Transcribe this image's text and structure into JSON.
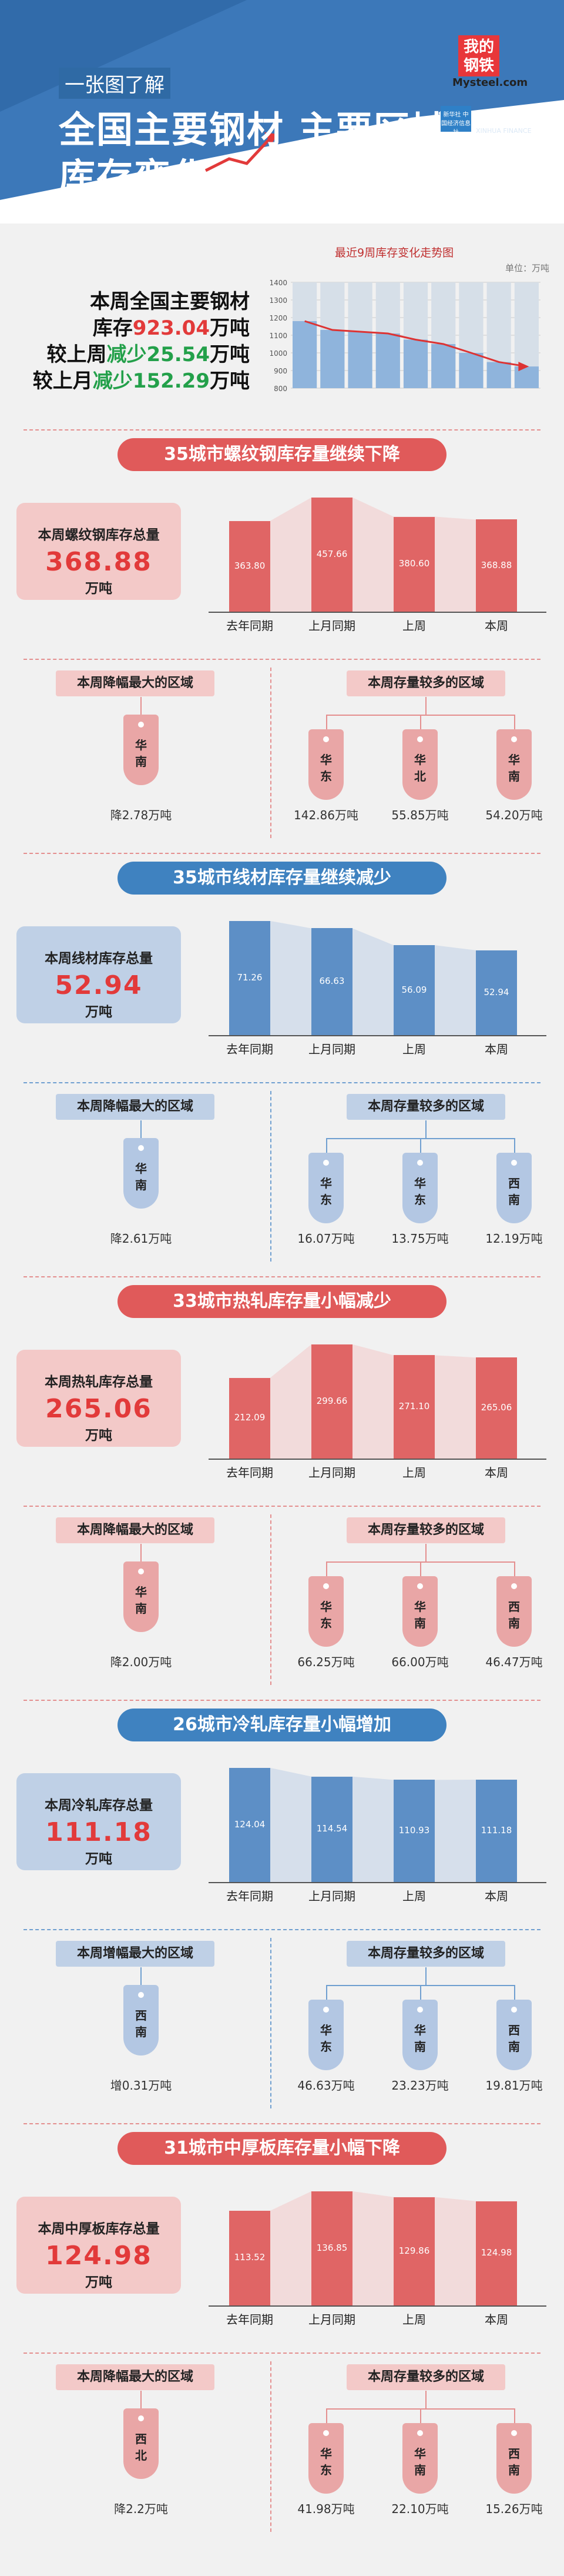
{
  "header": {
    "tag": "一张图了解",
    "title1": "全国主要钢材 主要区域",
    "title2": "库存变化",
    "brand_a": "我的",
    "brand_a2": "钢铁",
    "brand_a3": "Mysteel.com",
    "brand_b_box": "新华社 中国经济信息社",
    "brand_b": "新华财经",
    "brand_b2": "XINHUA FINANCE"
  },
  "summary": {
    "l1": "本周全国主要钢材",
    "l2a": "库存",
    "l2v": "923.04",
    "l2b": "万吨",
    "l3a": "较上周",
    "l3c": "减少",
    "l3v": "25.54",
    "l3b": "万吨",
    "l4a": "较上月",
    "l4c": "减少",
    "l4v": "152.29",
    "l4b": "万吨"
  },
  "mini_chart": {
    "title": "最近9周库存变化走势图",
    "unit": "单位：万吨",
    "yticks": [
      "1400",
      "1300",
      "1200",
      "1100",
      "1000",
      "900",
      "800"
    ],
    "ymin": 800,
    "ymax": 1400,
    "values": [
      1180,
      1130,
      1120,
      1110,
      1075,
      1050,
      1000,
      948,
      923
    ]
  },
  "colors": {
    "red": "#e23a3a",
    "red_light": "#f3c9c8",
    "blue_light": "#bfd0e6",
    "pill_red": "#e05a5a",
    "pill_blue": "#3f82c0",
    "bar_red": "#e06565",
    "bar_blue": "#5d8fc6"
  },
  "sections": [
    {
      "title": "35城市螺纹钢库存量继续下降",
      "box_label": "本周螺纹钢库存总量",
      "box_value": "368.88",
      "box_unit": "万吨",
      "categories": [
        "去年同期",
        "上月同期",
        "上周",
        "本周"
      ],
      "values": [
        363.8,
        457.66,
        380.6,
        368.88
      ],
      "value_labels": [
        "363.80",
        "457.66",
        "380.60",
        "368.88"
      ],
      "left_title": "本周降幅最大的区域",
      "left_region": "华\n南",
      "left_value": "降2.78万吨",
      "right_title": "本周存量较多的区域",
      "right_regions": [
        "华\n东",
        "华\n北",
        "华\n南"
      ],
      "right_values": [
        "142.86万吨",
        "55.85万吨",
        "54.20万吨"
      ]
    },
    {
      "title": "35城市线材库存量继续减少",
      "box_label": "本周线材库存总量",
      "box_value": "52.94",
      "box_unit": "万吨",
      "categories": [
        "去年同期",
        "上月同期",
        "上周",
        "本周"
      ],
      "values": [
        71.26,
        66.63,
        56.09,
        52.94
      ],
      "value_labels": [
        "71.26",
        "66.63",
        "56.09",
        "52.94"
      ],
      "left_title": "本周降幅最大的区域",
      "left_region": "华\n南",
      "left_value": "降2.61万吨",
      "right_title": "本周存量较多的区域",
      "right_regions": [
        "华\n东",
        "华\n东",
        "西\n南"
      ],
      "right_values": [
        "16.07万吨",
        "13.75万吨",
        "12.19万吨"
      ]
    },
    {
      "title": "33城市热轧库存量小幅减少",
      "box_label": "本周热轧库存总量",
      "box_value": "265.06",
      "box_unit": "万吨",
      "categories": [
        "去年同期",
        "上月同期",
        "上周",
        "本周"
      ],
      "values": [
        212.09,
        299.66,
        271.1,
        265.06
      ],
      "value_labels": [
        "212.09",
        "299.66",
        "271.10",
        "265.06"
      ],
      "left_title": "本周降幅最大的区域",
      "left_region": "华\n南",
      "left_value": "降2.00万吨",
      "right_title": "本周存量较多的区域",
      "right_regions": [
        "华\n东",
        "华\n南",
        "西\n南"
      ],
      "right_values": [
        "66.25万吨",
        "66.00万吨",
        "46.47万吨"
      ]
    },
    {
      "title": "26城市冷轧库存量小幅增加",
      "box_label": "本周冷轧库存总量",
      "box_value": "111.18",
      "box_unit": "万吨",
      "categories": [
        "去年同期",
        "上月同期",
        "上周",
        "本周"
      ],
      "values": [
        124.04,
        114.54,
        110.93,
        111.18
      ],
      "value_labels": [
        "124.04",
        "114.54",
        "110.93",
        "111.18"
      ],
      "left_title": "本周增幅最大的区域",
      "left_region": "西\n南",
      "left_value": "增0.31万吨",
      "right_title": "本周存量较多的区域",
      "right_regions": [
        "华\n东",
        "华\n南",
        "西\n南"
      ],
      "right_values": [
        "46.63万吨",
        "23.23万吨",
        "19.81万吨"
      ]
    },
    {
      "title": "31城市中厚板库存量小幅下降",
      "box_label": "本周中厚板库存总量",
      "box_value": "124.98",
      "box_unit": "万吨",
      "categories": [
        "去年同期",
        "上月同期",
        "上周",
        "本周"
      ],
      "values": [
        113.52,
        136.85,
        129.86,
        124.98
      ],
      "value_labels": [
        "113.52",
        "136.85",
        "129.86",
        "124.98"
      ],
      "left_title": "本周降幅最大的区域",
      "left_region": "西\n北",
      "left_value": "降2.2万吨",
      "right_title": "本周存量较多的区域",
      "right_regions": [
        "华\n东",
        "华\n南",
        "西\n南"
      ],
      "right_values": [
        "41.98万吨",
        "22.10万吨",
        "15.26万吨"
      ]
    }
  ]
}
